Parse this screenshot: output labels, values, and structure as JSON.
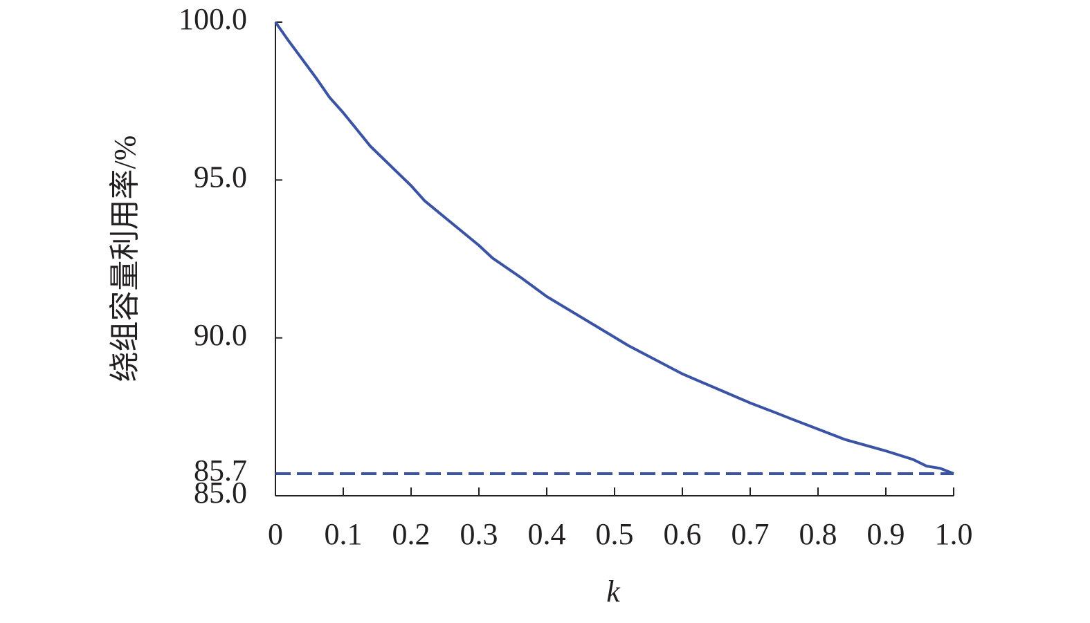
{
  "chart_data": {
    "type": "line",
    "y_label": "绕组容量利用率/%",
    "x_label": "k",
    "xlim": [
      0,
      1.0
    ],
    "xticks": [
      0,
      0.1,
      0.2,
      0.3,
      0.4,
      0.5,
      0.6,
      0.7,
      0.8,
      0.9,
      {
        "value": 1.0,
        "label": "1.0"
      }
    ],
    "ylim": [
      85.0,
      100.0
    ],
    "yticks": [
      {
        "value": 85.0,
        "label": "85.0"
      },
      {
        "value": 85.7,
        "label": "85.7"
      },
      {
        "value": 90.0,
        "label": "90.0"
      },
      {
        "value": 95.0,
        "label": "95.0"
      },
      {
        "value": 100.0,
        "label": "100.0"
      }
    ],
    "series": [
      {
        "color": "#3a53a4",
        "style": "solid",
        "x": [
          0,
          0.02,
          0.06,
          0.08,
          0.1,
          0.12,
          0.14,
          0.2,
          0.22,
          0.3,
          0.32,
          0.36,
          0.4,
          0.5,
          0.52,
          0.6,
          0.7,
          0.74,
          0.76,
          0.8,
          0.84,
          0.9,
          0.94,
          0.96,
          0.98,
          1.0
        ],
        "values": [
          100.0,
          99.39,
          98.23,
          97.61,
          97.13,
          96.6,
          96.07,
          94.82,
          94.34,
          92.93,
          92.53,
          91.94,
          91.31,
          90.02,
          89.76,
          88.86,
          87.94,
          87.61,
          87.44,
          87.11,
          86.78,
          86.42,
          86.15,
          85.94,
          85.87,
          85.7
        ]
      },
      {
        "color": "#3a53a4",
        "style": "dashed",
        "x": [
          0,
          1.0
        ],
        "values": [
          85.7,
          85.7
        ]
      }
    ]
  }
}
